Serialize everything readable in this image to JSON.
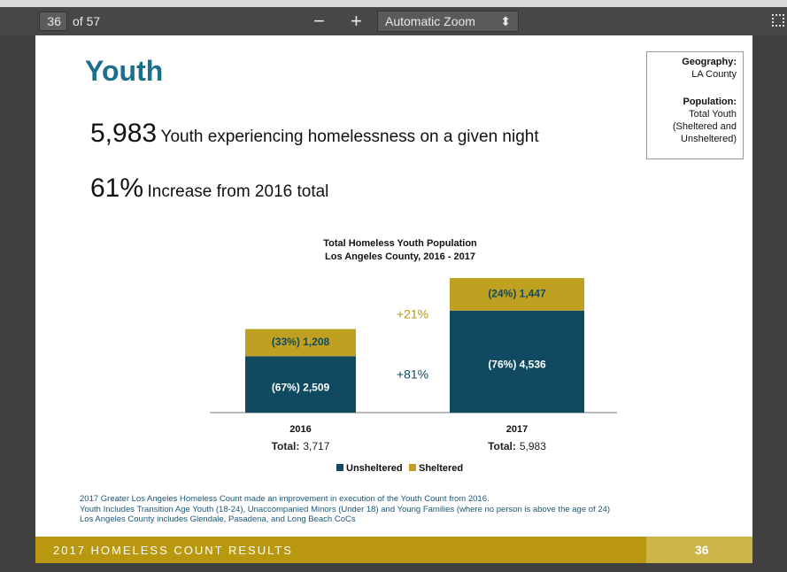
{
  "toolbar": {
    "page": "36",
    "page_count": "of 57",
    "zoom_out": "−",
    "zoom_in": "+",
    "zoom": "Automatic Zoom"
  },
  "slide": {
    "title": "Youth",
    "stat1_number": "5,983",
    "stat1_text": "Youth experiencing homelessness on a given night",
    "stat2_number": "61%",
    "stat2_text": "Increase from 2016 total",
    "info": [
      "Geography:",
      "LA County",
      "Population:",
      "Total Youth",
      "(Sheltered and",
      "Unsheltered)"
    ],
    "notes": [
      "2017 Greater Los Angeles Homeless Count made an improvement in execution of the Youth Count from 2016.",
      "Youth Includes Transition Age Youth (18-24), Unaccompanied Minors (Under 18) and Young Families (where no person is above the age of 24)",
      "Los Angeles County includes Glendale, Pasadena, and Long Beach CoCs"
    ],
    "footer": "2017 HOMELESS COUNT RESULTS",
    "page_number": "36"
  },
  "chart_data": {
    "type": "stacked_bar",
    "title": "Total Homeless Youth Population",
    "subtitle": "Los Angeles County, 2016 - 2017",
    "categories": [
      "2016",
      "2017"
    ],
    "series": [
      {
        "name": "Unsheltered",
        "color": "#0f4a60",
        "values": [
          2509,
          4536
        ],
        "value_labels": [
          "(67%) 2,509",
          "(76%) 4,536"
        ]
      },
      {
        "name": "Sheltered",
        "color": "#bfa021",
        "values": [
          1208,
          1447
        ],
        "value_labels": [
          "(33%) 1,208",
          "(24%) 1,447"
        ]
      }
    ],
    "annotations": [
      "+21%",
      "+81%"
    ],
    "total_label": "Total:",
    "totals": [
      "3,717",
      "5,983"
    ]
  }
}
